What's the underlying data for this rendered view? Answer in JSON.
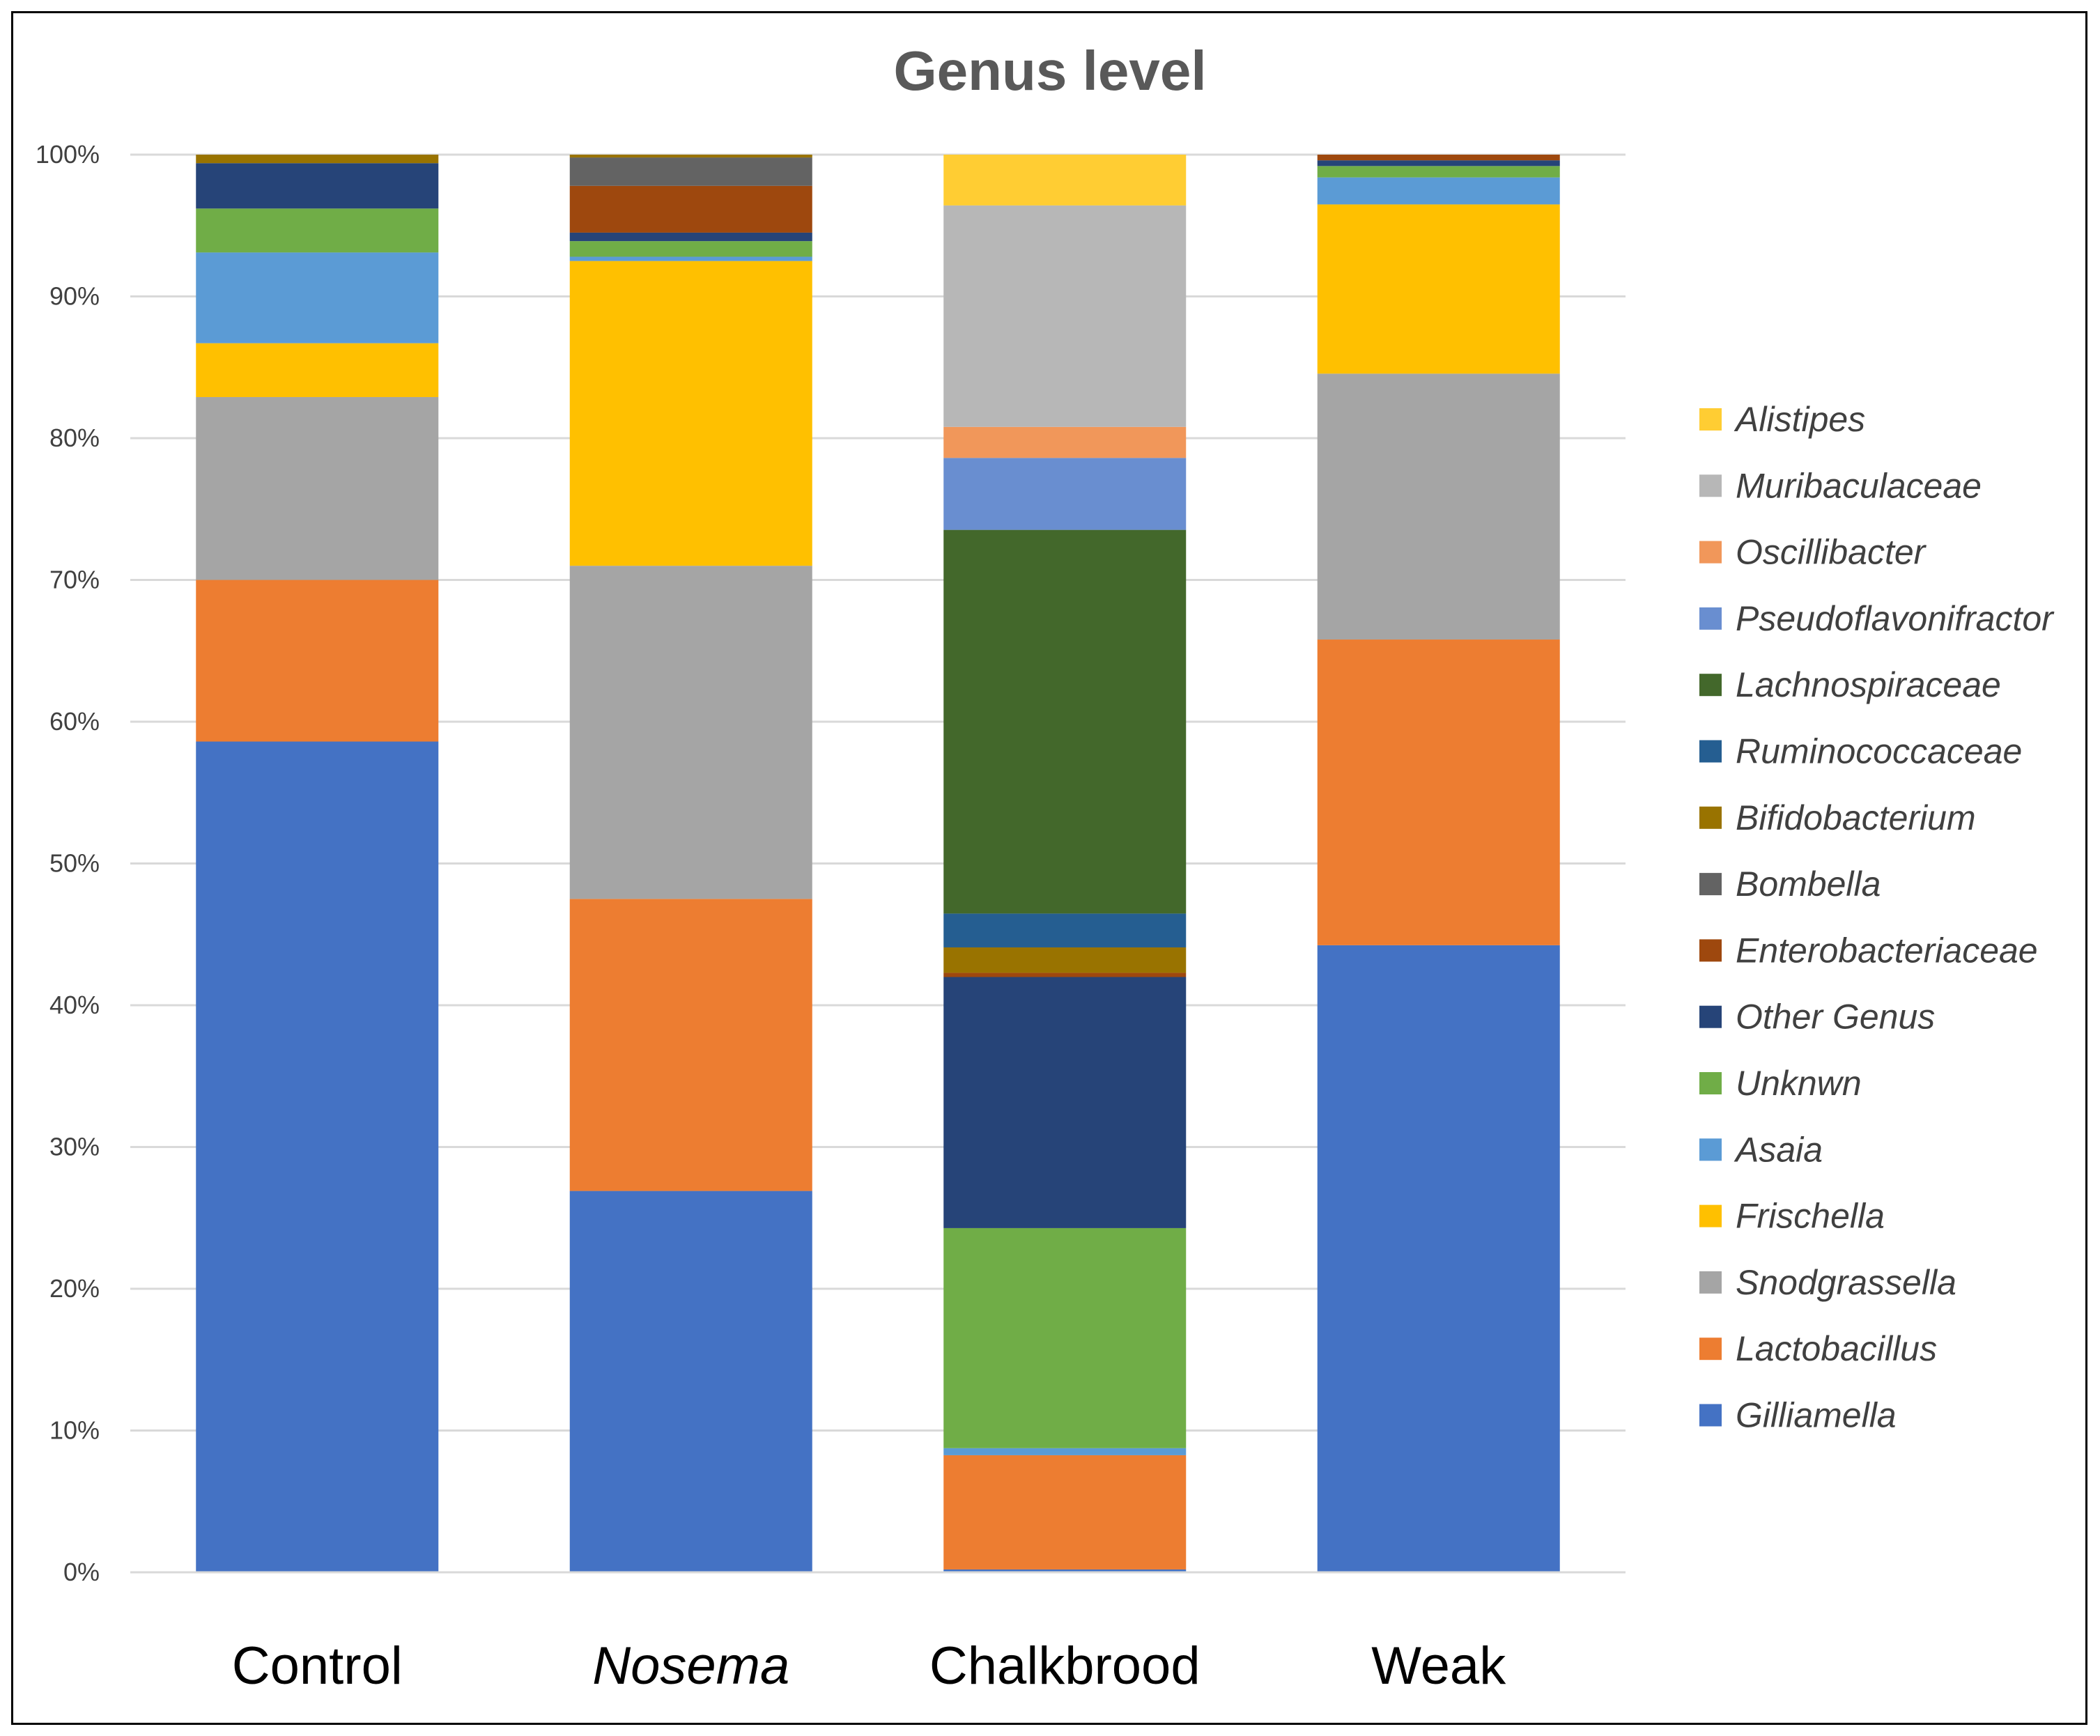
{
  "chart_data": {
    "type": "bar",
    "stacked": true,
    "percent": true,
    "title": "Genus level",
    "categories": [
      "Control",
      "Nosema",
      "Chalkbrood",
      "Weak"
    ],
    "category_italic": [
      false,
      true,
      false,
      false
    ],
    "yticks": [
      "0%",
      "10%",
      "20%",
      "30%",
      "40%",
      "50%",
      "60%",
      "70%",
      "80%",
      "90%",
      "100%"
    ],
    "ylim": [
      0,
      100
    ],
    "grid": true,
    "legend_position": "right",
    "series": [
      {
        "name": "Gilliamella",
        "color": "#4472C4",
        "values": [
          58.6,
          26.9,
          0.2,
          44.1
        ]
      },
      {
        "name": "Lactobacillus",
        "color": "#ED7D31",
        "values": [
          11.4,
          20.6,
          8.1,
          21.5
        ]
      },
      {
        "name": "Snodgrassella",
        "color": "#A5A5A5",
        "values": [
          12.9,
          23.5,
          0.0,
          18.7
        ]
      },
      {
        "name": "Frischella",
        "color": "#FFC000",
        "values": [
          3.8,
          21.5,
          0.0,
          11.9
        ]
      },
      {
        "name": "Asaia",
        "color": "#5B9BD5",
        "values": [
          6.4,
          0.3,
          0.5,
          1.9
        ]
      },
      {
        "name": "Unknwn",
        "color": "#70AD47",
        "values": [
          3.1,
          1.1,
          15.6,
          0.8
        ]
      },
      {
        "name": "Other Genus",
        "color": "#264478",
        "values": [
          3.2,
          0.6,
          17.8,
          0.4
        ]
      },
      {
        "name": "Enterobacteriaceae",
        "color": "#9E480E",
        "values": [
          0.0,
          3.3,
          0.3,
          0.4
        ]
      },
      {
        "name": "Bombella",
        "color": "#636363",
        "values": [
          0.0,
          2.0,
          0.0,
          0.0
        ]
      },
      {
        "name": "Bifidobacterium",
        "color": "#997300",
        "values": [
          0.6,
          0.2,
          1.8,
          0.0
        ]
      },
      {
        "name": "Ruminococcaceae",
        "color": "#255E91",
        "values": [
          0.0,
          0.0,
          2.4,
          0.0
        ]
      },
      {
        "name": "Lachnospiraceae",
        "color": "#43682B",
        "values": [
          0.0,
          0.0,
          27.2,
          0.0
        ]
      },
      {
        "name": "Pseudoflavonifractor",
        "color": "#698ED0",
        "values": [
          0.0,
          0.0,
          5.1,
          0.0
        ]
      },
      {
        "name": "Oscillibacter",
        "color": "#F1975A",
        "values": [
          0.0,
          0.0,
          2.2,
          0.0
        ]
      },
      {
        "name": "Muribaculaceae",
        "color": "#B7B7B7",
        "values": [
          0.0,
          0.0,
          15.7,
          0.0
        ]
      },
      {
        "name": "Alistipes",
        "color": "#FFCD33",
        "values": [
          0.0,
          0.0,
          3.6,
          0.0
        ]
      }
    ]
  }
}
